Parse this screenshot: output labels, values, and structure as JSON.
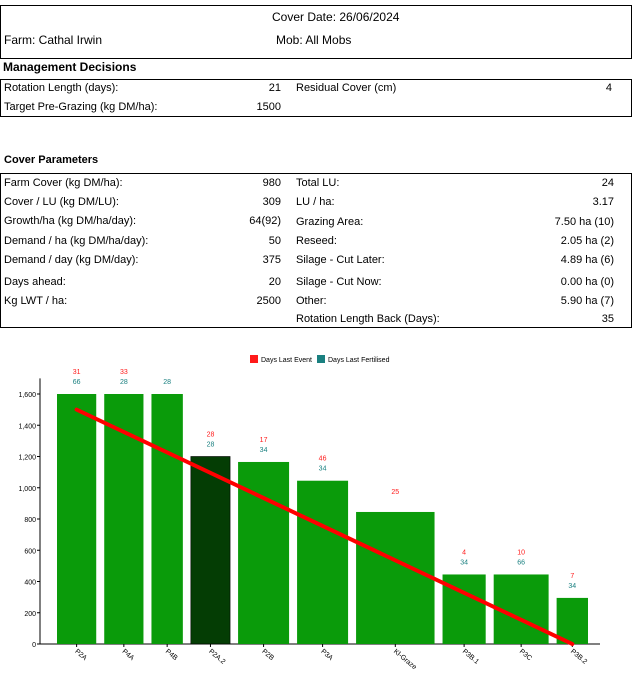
{
  "header": {
    "cover_date": "Cover Date: 26/06/2024",
    "farm": "Farm: Cathal Irwin",
    "mob": "Mob: All Mobs"
  },
  "management": {
    "title": "Management Decisions",
    "rotation_label": "Rotation Length (days):",
    "rotation_value": "21",
    "target_label": "Target Pre-Grazing (kg DM/ha):",
    "target_value": "1500",
    "residual_label": "Residual Cover (cm)",
    "residual_value": "4"
  },
  "cover": {
    "title": "Cover Parameters",
    "left": [
      {
        "label": "Farm Cover (kg DM/ha):",
        "value": "980"
      },
      {
        "label": "Cover / LU (kg DM/LU):",
        "value": "309"
      },
      {
        "label": "Growth/ha (kg DM/ha/day):",
        "value": "64(92)"
      },
      {
        "label": "Demand / ha (kg DM/ha/day):",
        "value": "50"
      },
      {
        "label": "Demand / day (kg DM/day):",
        "value": "375"
      },
      {
        "label": "Days ahead:",
        "value": "20"
      },
      {
        "label": "Kg LWT / ha:",
        "value": "2500"
      }
    ],
    "right": [
      {
        "label": "Total LU:",
        "value": "24"
      },
      {
        "label": "LU / ha:",
        "value": "3.17"
      },
      {
        "label": "Grazing Area:",
        "value": "7.50 ha (10)"
      },
      {
        "label": "Reseed:",
        "value": "2.05 ha (2)"
      },
      {
        "label": "Silage - Cut Later:",
        "value": "4.89 ha (6)"
      },
      {
        "label": "Silage - Cut Now:",
        "value": "0.00 ha (0)"
      },
      {
        "label": "Other:",
        "value": "5.90 ha (7)"
      },
      {
        "label": "Rotation Length Back (Days):",
        "value": "35"
      }
    ]
  },
  "colors": {
    "bar": "#0a9b0a",
    "bar_selected": "#043d04",
    "days_last_event": "#ff1a1a",
    "days_last_fertilised": "#1a8080",
    "target_line": "#ff0000"
  },
  "chart_data": {
    "type": "bar",
    "legend": [
      "Days Last Event",
      "Days Last Fertilised"
    ],
    "legend_position": "top-center",
    "ylim": [
      0,
      1700
    ],
    "yticks": [
      0,
      200,
      400,
      600,
      800,
      1000,
      1200,
      1400,
      1600
    ],
    "ytick_labels": [
      "0",
      "200",
      "400",
      "600",
      "800",
      "1,000",
      "1,200",
      "1,400",
      "1,600"
    ],
    "categories": [
      "P2A",
      "P4A",
      "P4B",
      "P2A.2",
      "P2B",
      "P3A",
      "Kl-Graze",
      "P3B.1",
      "P3C",
      "P3B.2"
    ],
    "values": [
      1600,
      1600,
      1600,
      1200,
      1165,
      1045,
      845,
      445,
      445,
      295
    ],
    "relative_widths": [
      1,
      1,
      0.8,
      1,
      1.3,
      1.3,
      2,
      1.1,
      1.4,
      0.8
    ],
    "selected_index": 3,
    "days_last_event": [
      "31",
      "33",
      "",
      "28",
      "17",
      "46",
      "25",
      "4",
      "10",
      "7"
    ],
    "days_last_fertilised": [
      "66",
      "28",
      "28",
      "28",
      "34",
      "34",
      "",
      "34",
      "66",
      "34"
    ],
    "target_line": {
      "start": 1500,
      "end": 0
    }
  }
}
